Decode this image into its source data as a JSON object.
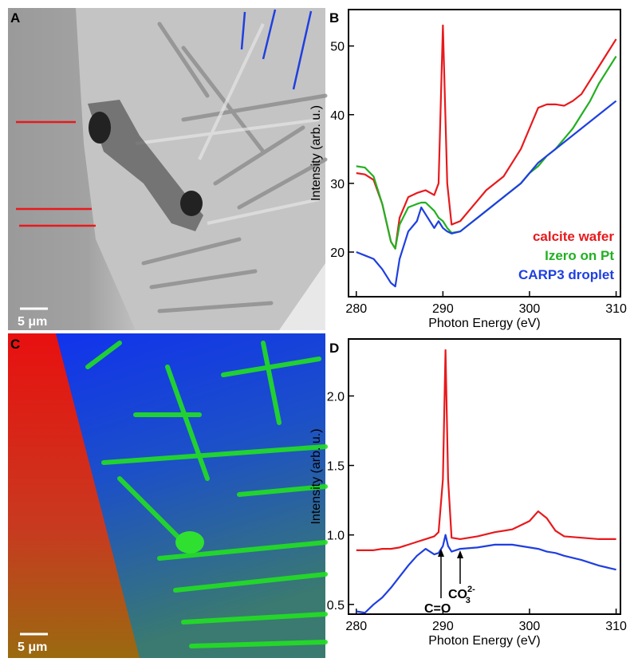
{
  "panel_labels": [
    "A",
    "B",
    "C",
    "D"
  ],
  "scale_bars": [
    "5 μm",
    "5 μm"
  ],
  "chart_data": [
    {
      "type": "line",
      "ylabel": "Intensity (arb. u.)",
      "xlabel": "Photon Energy (eV)",
      "x": [
        280,
        281,
        282,
        283,
        284,
        284.5,
        285,
        286,
        287,
        287.5,
        288,
        289,
        289.5,
        290,
        290.5,
        291,
        292,
        293,
        294,
        295,
        296,
        297,
        298,
        299,
        300,
        301,
        302,
        303,
        304,
        305,
        306,
        307,
        308,
        309,
        310
      ],
      "series": [
        {
          "name": "calcite wafer",
          "color": "#e8191c",
          "values": [
            31.5,
            31.3,
            30.5,
            27,
            21.5,
            20.5,
            25,
            28,
            28.6,
            28.8,
            29,
            28.3,
            30,
            53,
            30,
            24,
            24.5,
            26,
            27.5,
            29,
            30,
            31,
            33,
            35,
            38,
            41,
            41.5,
            41.5,
            41.3,
            42,
            43,
            45,
            47,
            49,
            51
          ]
        },
        {
          "name": "Izero on Pt",
          "color": "#22b022",
          "values": [
            32.5,
            32.3,
            31,
            27,
            21.5,
            20.5,
            24,
            26.5,
            27,
            27.2,
            27.2,
            26,
            25,
            24.5,
            23.5,
            22.8,
            23,
            24,
            25,
            26,
            27,
            28,
            29,
            30,
            31.5,
            32.5,
            34,
            35,
            36.5,
            38,
            40,
            42,
            44.5,
            46.5,
            48.5
          ]
        },
        {
          "name": "CARP3 droplet",
          "color": "#1f3fe0",
          "values": [
            20,
            19.5,
            19,
            17.5,
            15.5,
            15,
            19,
            23,
            24.5,
            26.5,
            25.5,
            23.5,
            24.5,
            23.5,
            23,
            22.7,
            23,
            24,
            25,
            26,
            27,
            28,
            29,
            30,
            31.5,
            33,
            34,
            35,
            36,
            37,
            38,
            39,
            40,
            41,
            42
          ]
        }
      ],
      "xlim": [
        279.1,
        310.5
      ],
      "xticks": [
        280,
        290,
        300,
        310
      ],
      "ylim": [
        13.5,
        55.3
      ],
      "yticks": [
        20,
        30,
        40,
        50
      ]
    },
    {
      "type": "line",
      "ylabel": "Intensity (arb. u.)",
      "xlabel": "Photon Energy (eV)",
      "x": [
        280,
        281,
        282,
        283,
        284,
        285,
        286,
        287,
        288,
        289,
        289.5,
        290,
        290.3,
        290.6,
        291,
        292,
        294,
        296,
        298,
        300,
        301,
        302,
        303,
        304,
        306,
        308,
        310
      ],
      "series": [
        {
          "name": "calcite wafer",
          "color": "#e8191c",
          "values": [
            0.89,
            0.89,
            0.89,
            0.9,
            0.9,
            0.91,
            0.93,
            0.95,
            0.97,
            0.99,
            1.02,
            1.4,
            2.33,
            1.4,
            0.98,
            0.97,
            0.99,
            1.02,
            1.04,
            1.1,
            1.17,
            1.12,
            1.03,
            0.99,
            0.98,
            0.97,
            0.97
          ]
        },
        {
          "name": "CARP3 droplet",
          "color": "#1f3fe0",
          "values": [
            0.45,
            0.44,
            0.5,
            0.55,
            0.62,
            0.7,
            0.78,
            0.85,
            0.9,
            0.86,
            0.87,
            0.92,
            1.0,
            0.92,
            0.88,
            0.9,
            0.91,
            0.93,
            0.93,
            0.91,
            0.9,
            0.88,
            0.87,
            0.85,
            0.82,
            0.78,
            0.75
          ]
        }
      ],
      "xlim": [
        279.1,
        310.5
      ],
      "xticks": [
        280,
        290,
        300,
        310
      ],
      "ylim": [
        0.43,
        2.41
      ],
      "yticks": [
        0.5,
        {
          "value": 1,
          "label": "1.0"
        },
        1.5,
        {
          "value": 2,
          "label": "2.0"
        }
      ],
      "annotations": [
        {
          "text": "C=O"
        },
        {
          "text": "CO",
          "sub": "3",
          "sup": "2-"
        }
      ]
    }
  ]
}
